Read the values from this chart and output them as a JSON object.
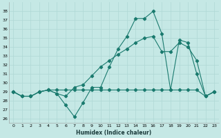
{
  "xlabel": "Humidex (Indice chaleur)",
  "xlim": [
    -0.5,
    23.5
  ],
  "ylim": [
    25.5,
    39.0
  ],
  "yticks": [
    26,
    27,
    28,
    29,
    30,
    31,
    32,
    33,
    34,
    35,
    36,
    37,
    38
  ],
  "xticks": [
    0,
    1,
    2,
    3,
    4,
    5,
    6,
    7,
    8,
    9,
    10,
    11,
    12,
    13,
    14,
    15,
    16,
    17,
    18,
    19,
    20,
    21,
    22,
    23
  ],
  "bg_color": "#c5e8e5",
  "grid_color": "#afd8d5",
  "line_color": "#1a7a6e",
  "series": [
    [
      29.0,
      28.5,
      28.5,
      29.0,
      29.2,
      28.8,
      27.5,
      26.2,
      27.8,
      29.5,
      29.5,
      31.8,
      33.8,
      35.2,
      37.2,
      37.2,
      38.0,
      35.5,
      29.2,
      34.8,
      34.5,
      31.0,
      28.5,
      29.0
    ],
    [
      29.0,
      28.5,
      28.5,
      29.0,
      29.2,
      29.2,
      29.2,
      29.2,
      29.2,
      29.2,
      29.2,
      29.2,
      29.2,
      29.2,
      29.2,
      29.2,
      29.2,
      29.2,
      29.2,
      29.2,
      29.2,
      29.2,
      28.5,
      29.0
    ],
    [
      29.0,
      28.5,
      28.5,
      29.0,
      29.2,
      28.8,
      28.5,
      29.5,
      29.8,
      30.8,
      31.8,
      32.5,
      33.2,
      33.8,
      34.5,
      35.0,
      35.2,
      33.5,
      33.5,
      34.5,
      34.0,
      32.5,
      28.5,
      29.0
    ]
  ],
  "x": [
    0,
    1,
    2,
    3,
    4,
    5,
    6,
    7,
    8,
    9,
    10,
    11,
    12,
    13,
    14,
    15,
    16,
    17,
    18,
    19,
    20,
    21,
    22,
    23
  ],
  "marker": "D",
  "markersize": 2.2,
  "linewidth": 0.8,
  "tick_fontsize": 4.5,
  "xlabel_fontsize": 5.5,
  "ylabel_fontsize": 5.0
}
